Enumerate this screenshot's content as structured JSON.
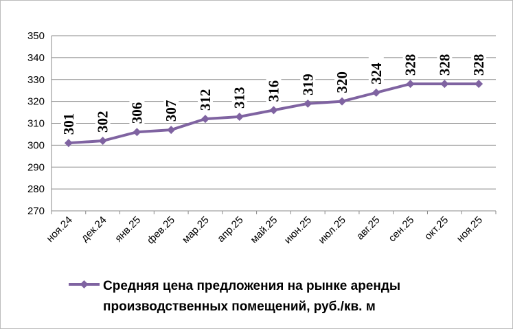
{
  "chart_data": {
    "type": "line",
    "categories": [
      "ноя.24",
      "дек.24",
      "янв.25",
      "фев.25",
      "мар.25",
      "апр.25",
      "май.25",
      "июн.25",
      "июл.25",
      "авг.25",
      "сен.25",
      "окт.25",
      "ноя.25"
    ],
    "series": [
      {
        "name": "Средняя цена предложения на рынке аренды производственных помещений,  руб./кв. м",
        "color": "#7f63a1",
        "values": [
          301,
          302,
          306,
          307,
          312,
          313,
          316,
          319,
          320,
          324,
          328,
          328,
          328
        ]
      }
    ],
    "ylim": [
      270,
      350
    ],
    "yticks": [
      270,
      280,
      290,
      300,
      310,
      320,
      330,
      340,
      350
    ],
    "grid": true,
    "legend": "bottom"
  }
}
